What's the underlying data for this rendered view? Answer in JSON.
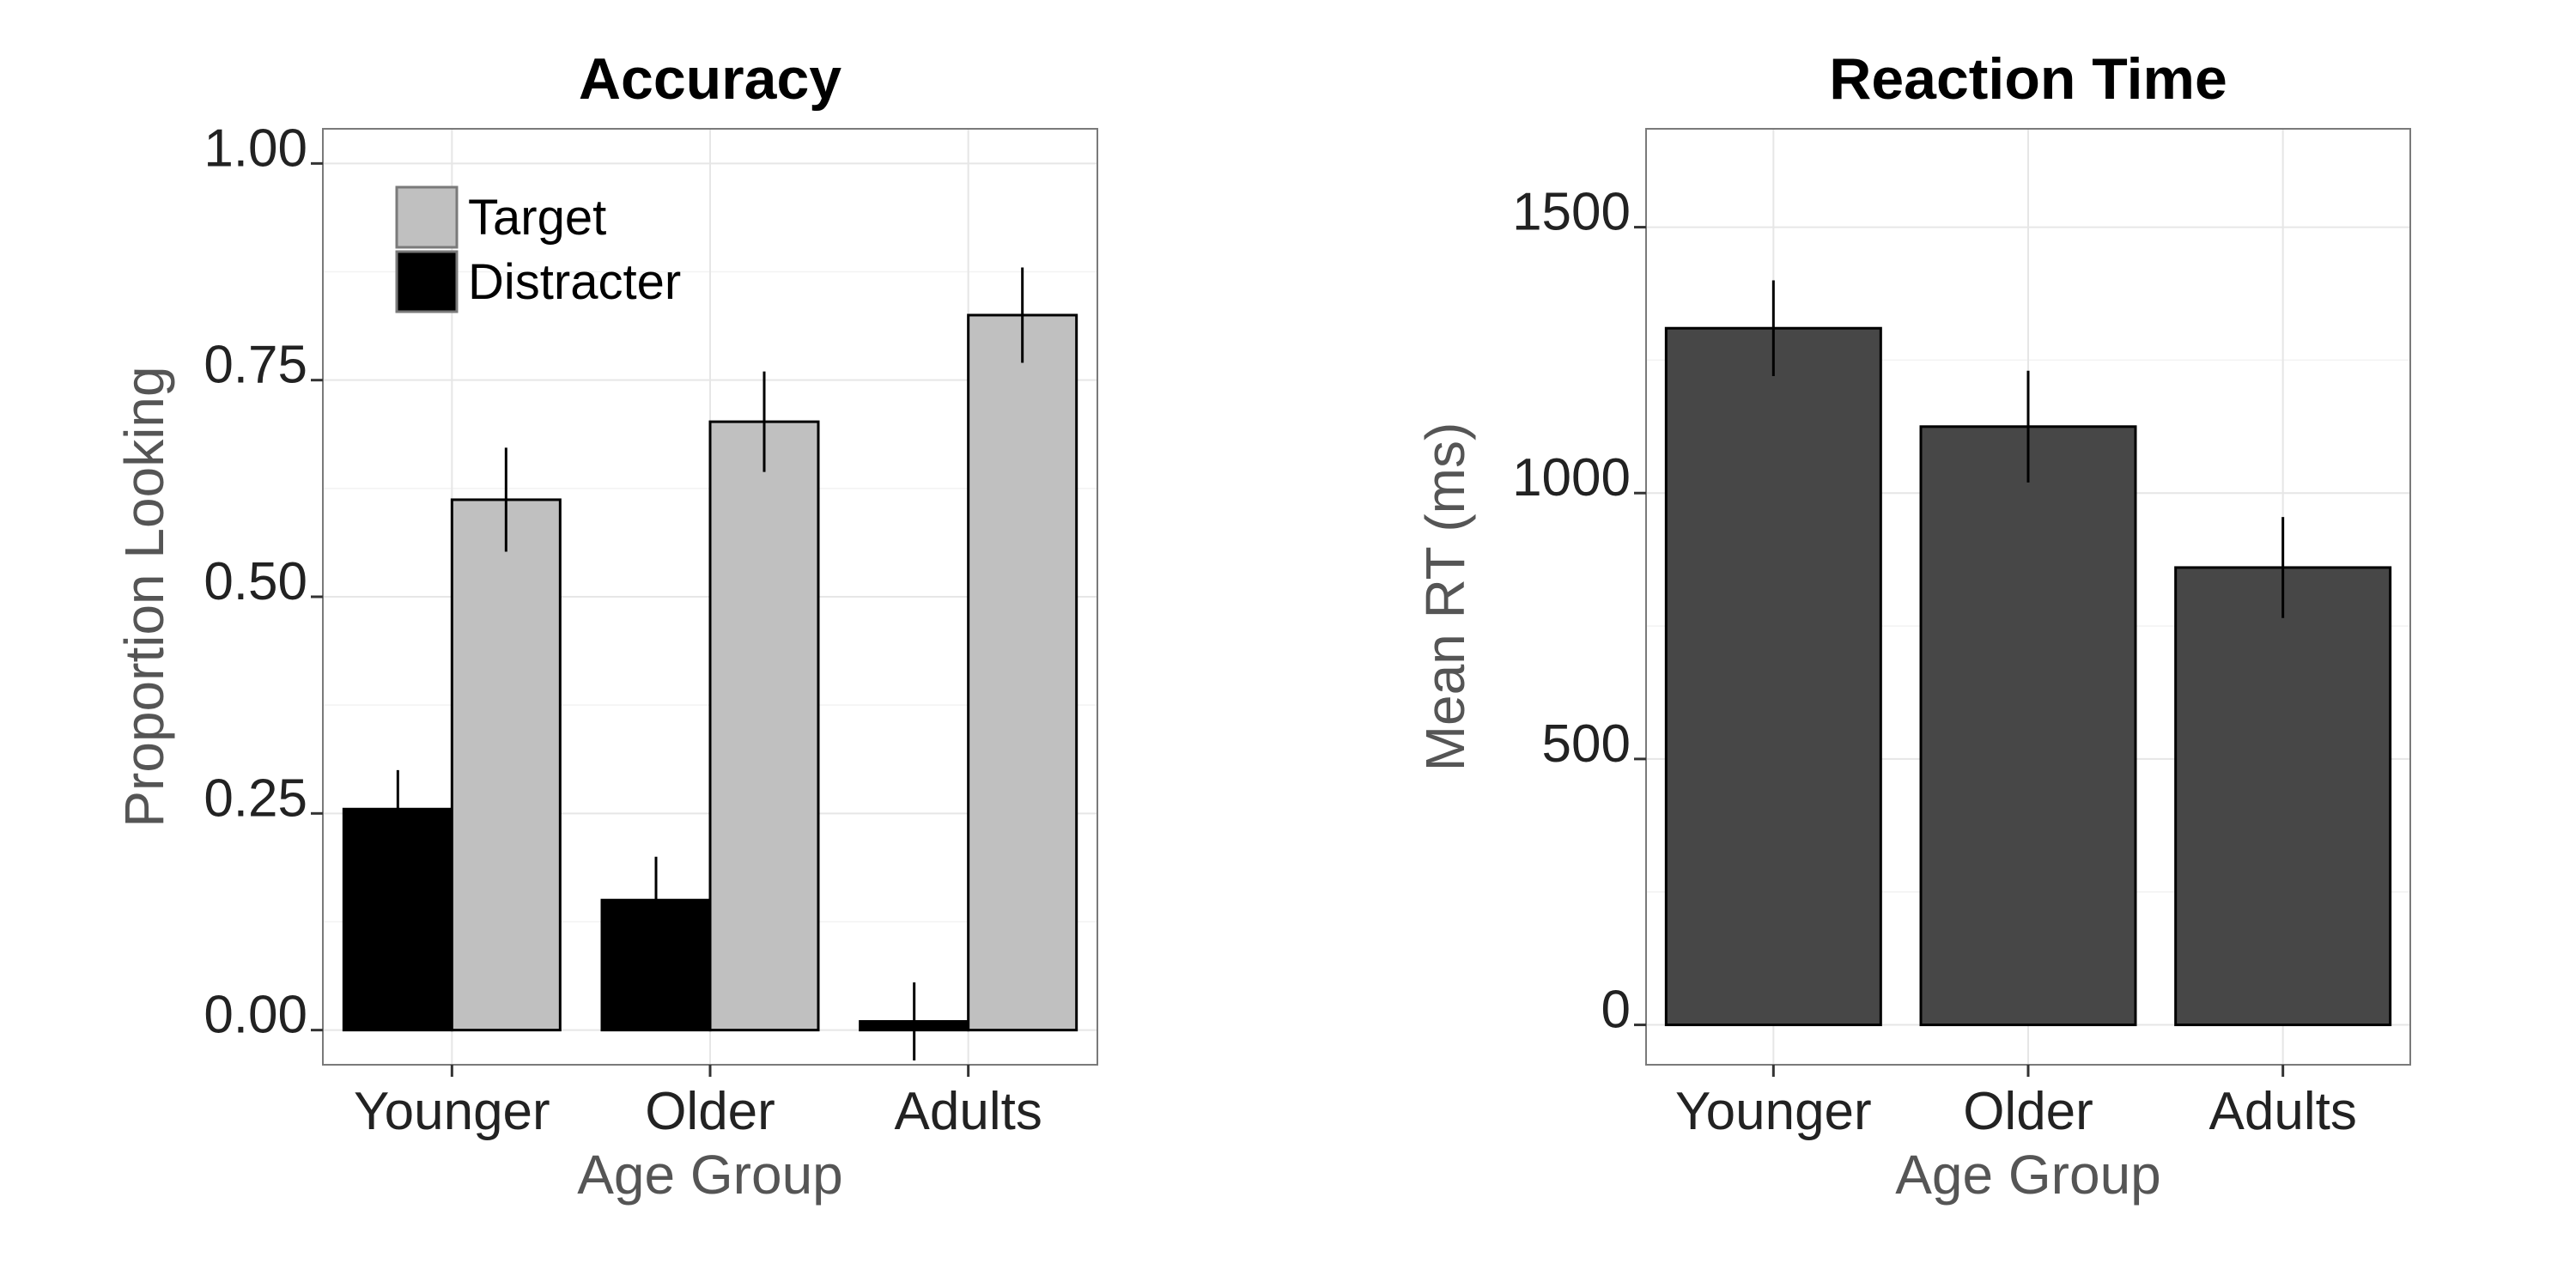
{
  "chart_data": [
    {
      "type": "bar",
      "title": "Accuracy",
      "xlabel": "Age Group",
      "ylabel": "Proportion Looking",
      "categories": [
        "Younger",
        "Older",
        "Adults"
      ],
      "ylim": [
        -0.04,
        1.04
      ],
      "yticks": [
        0,
        0.25,
        0.5,
        0.75,
        1.0
      ],
      "ytick_labels": [
        "0.00",
        "0.25",
        "0.50",
        "0.75",
        "1.00"
      ],
      "grid": true,
      "legend": {
        "placement": "top-left",
        "entries": [
          "Target",
          "Distracter"
        ]
      },
      "series": [
        {
          "name": "Distracter",
          "color": "#000000",
          "values": [
            0.255,
            0.15,
            0.01
          ],
          "error": [
            0.045,
            0.05,
            0.045
          ]
        },
        {
          "name": "Target",
          "color": "#c0c0c0",
          "values": [
            0.612,
            0.702,
            0.825
          ],
          "error": [
            0.06,
            0.058,
            0.055
          ]
        }
      ]
    },
    {
      "type": "bar",
      "title": "Reaction Time",
      "xlabel": "Age Group",
      "ylabel": "Mean RT (ms)",
      "categories": [
        "Younger",
        "Older",
        "Adults"
      ],
      "ylim": [
        -75,
        1685
      ],
      "yticks": [
        0,
        500,
        1000,
        1500
      ],
      "ytick_labels": [
        "0",
        "500",
        "1000",
        "1500"
      ],
      "grid": true,
      "series": [
        {
          "color": "#474747",
          "values": [
            1310,
            1125,
            860
          ],
          "error": [
            90,
            105,
            95
          ]
        }
      ]
    }
  ]
}
